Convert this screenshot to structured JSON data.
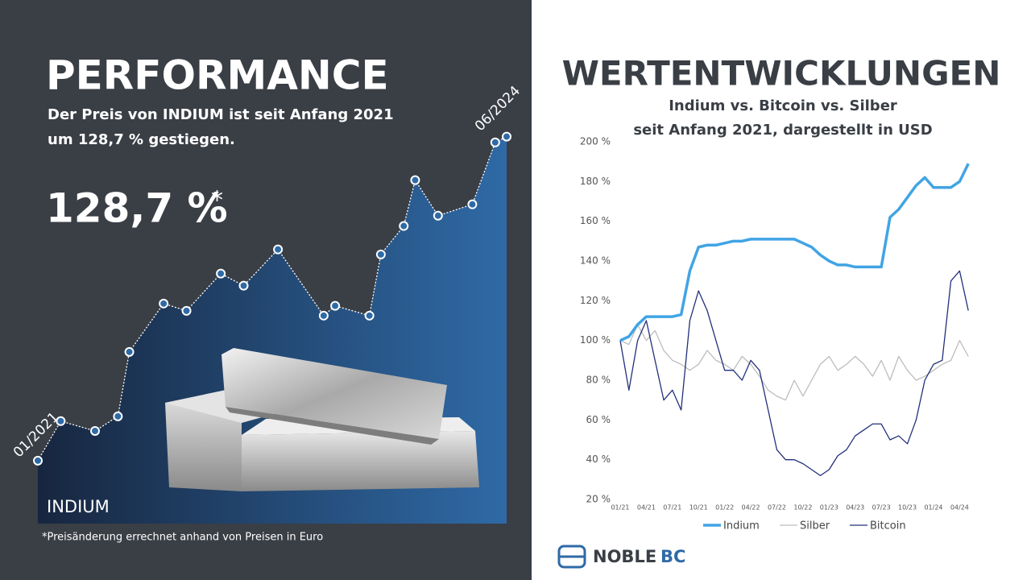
{
  "chart_data": [
    {
      "type": "area",
      "title": "PERFORMANCE",
      "subtitle": [
        "Der Preis von INDIUM ist seit Anfang 2021",
        "um 128,7 % gestiegen."
      ],
      "annotations": {
        "headline": "128,7 %",
        "asterisk": "*",
        "start": "01/2021",
        "end": "06/2024",
        "label": "INDIUM",
        "footnote": "*Preisänderung errechnet anhand von Preisen in Euro"
      },
      "x": [
        0,
        2,
        5,
        7,
        8,
        11,
        13,
        16,
        18,
        21,
        25,
        26,
        29,
        30,
        32,
        33,
        35,
        38,
        40,
        41
      ],
      "values": [
        100,
        115.7,
        111.8,
        117.6,
        143.2,
        162.4,
        159.5,
        174.3,
        169.5,
        183.9,
        157.6,
        161.5,
        157.6,
        181.9,
        193.2,
        211.4,
        197.3,
        201.8,
        226.4,
        228.7
      ],
      "xlim": [
        0,
        41
      ],
      "ylim": [
        75,
        250
      ],
      "color": "#2f6aa6"
    },
    {
      "type": "line",
      "title": "WERTENTWICKLUNGEN",
      "subtitle": [
        "Indium vs. Bitcoin vs. Silber",
        "seit Anfang 2021, dargestellt in USD"
      ],
      "x": [
        0,
        1,
        2,
        3,
        4,
        5,
        6,
        7,
        8,
        9,
        10,
        11,
        12,
        13,
        14,
        15,
        16,
        17,
        18,
        19,
        20,
        21,
        22,
        23,
        24,
        25,
        26,
        27,
        28,
        29,
        30,
        31,
        32,
        33,
        34,
        35,
        36,
        37,
        38,
        39,
        40
      ],
      "series": [
        {
          "name": "Indium",
          "color": "#41a4e4",
          "width": 3.5,
          "values": [
            100,
            102,
            108,
            112,
            112,
            112,
            112,
            113,
            135,
            147,
            148,
            148,
            149,
            150,
            150,
            151,
            151,
            151,
            151,
            151,
            151,
            149,
            147,
            143,
            140,
            138,
            138,
            137,
            137,
            137,
            137,
            162,
            166,
            172,
            178,
            182,
            177,
            177,
            177,
            180,
            189
          ]
        },
        {
          "name": "Silber",
          "color": "#bdbdbd",
          "width": 1.3,
          "values": [
            100,
            98,
            108,
            100,
            105,
            95,
            90,
            88,
            85,
            88,
            95,
            90,
            88,
            85,
            92,
            88,
            82,
            75,
            72,
            70,
            80,
            72,
            80,
            88,
            92,
            85,
            88,
            92,
            88,
            82,
            90,
            80,
            92,
            85,
            80,
            82,
            85,
            88,
            90,
            100,
            92
          ]
        },
        {
          "name": "Bitcoin",
          "color": "#22307a",
          "width": 1.3,
          "values": [
            100,
            75,
            100,
            110,
            90,
            70,
            75,
            65,
            110,
            125,
            115,
            100,
            85,
            85,
            80,
            90,
            85,
            65,
            45,
            40,
            40,
            38,
            35,
            32,
            35,
            42,
            45,
            52,
            55,
            58,
            58,
            50,
            52,
            48,
            60,
            80,
            88,
            90,
            130,
            135,
            115
          ]
        }
      ],
      "xlim": [
        0,
        41
      ],
      "xticks": [
        {
          "value": 0,
          "label": "01/21"
        },
        {
          "value": 3,
          "label": "04/21"
        },
        {
          "value": 6,
          "label": "07/21"
        },
        {
          "value": 9,
          "label": "10/21"
        },
        {
          "value": 12,
          "label": "01/22"
        },
        {
          "value": 15,
          "label": "04/22"
        },
        {
          "value": 18,
          "label": "07/22"
        },
        {
          "value": 21,
          "label": "10/22"
        },
        {
          "value": 24,
          "label": "01/23"
        },
        {
          "value": 27,
          "label": "04/23"
        },
        {
          "value": 30,
          "label": "07/23"
        },
        {
          "value": 33,
          "label": "10/23"
        },
        {
          "value": 36,
          "label": "01/24"
        },
        {
          "value": 39,
          "label": "04/24"
        }
      ],
      "ylim": [
        20,
        200
      ],
      "yticks": [
        {
          "value": 20,
          "label": "20 %"
        },
        {
          "value": 40,
          "label": "40 %"
        },
        {
          "value": 60,
          "label": "60 %"
        },
        {
          "value": 80,
          "label": "80 %"
        },
        {
          "value": 100,
          "label": "100 %"
        },
        {
          "value": 120,
          "label": "120 %"
        },
        {
          "value": 140,
          "label": "140 %"
        },
        {
          "value": 160,
          "label": "160 %"
        },
        {
          "value": 180,
          "label": "180 %"
        },
        {
          "value": 200,
          "label": "200 %"
        }
      ],
      "grid": false,
      "legend": "bottom"
    }
  ],
  "logo": {
    "name": "NOBLE",
    "suffix": "BC"
  }
}
